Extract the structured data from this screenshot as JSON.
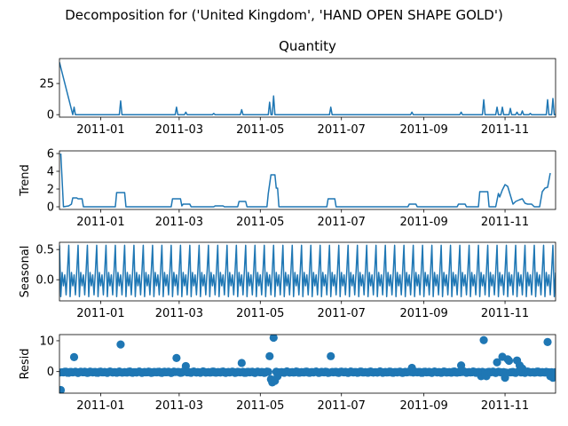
{
  "chart_data": {
    "type": "line",
    "title": "Decomposition for ('United Kingdom', 'HAND OPEN SHAPE GOLD')",
    "x_tick_labels": [
      "2011-01",
      "2011-03",
      "2011-05",
      "2011-07",
      "2011-09",
      "2011-11"
    ],
    "x_range": [
      "2010-12-01",
      "2011-12-09"
    ],
    "line_color": "#1f77b4",
    "panels": [
      {
        "id": "observed",
        "title": "Quantity",
        "ylabel": "",
        "type": "line",
        "ylim": [
          -2,
          45
        ],
        "yticks": [
          0,
          25
        ],
        "yticklabels": [
          "0",
          "25"
        ],
        "baseline": 0,
        "spikes": [
          {
            "date": "2010-12-01",
            "value": 42
          },
          {
            "date": "2010-12-12",
            "value": 6
          },
          {
            "date": "2011-01-16",
            "value": 11
          },
          {
            "date": "2011-02-27",
            "value": 6
          },
          {
            "date": "2011-03-06",
            "value": 2
          },
          {
            "date": "2011-03-27",
            "value": 1
          },
          {
            "date": "2011-04-17",
            "value": 4
          },
          {
            "date": "2011-05-08",
            "value": 10
          },
          {
            "date": "2011-05-11",
            "value": 15
          },
          {
            "date": "2011-06-23",
            "value": 6
          },
          {
            "date": "2011-08-23",
            "value": 2
          },
          {
            "date": "2011-09-29",
            "value": 2
          },
          {
            "date": "2011-10-16",
            "value": 12
          },
          {
            "date": "2011-10-26",
            "value": 6
          },
          {
            "date": "2011-10-30",
            "value": 6
          },
          {
            "date": "2011-11-05",
            "value": 5
          },
          {
            "date": "2011-11-10",
            "value": 2
          },
          {
            "date": "2011-11-14",
            "value": 3
          },
          {
            "date": "2011-11-20",
            "value": 1
          },
          {
            "date": "2011-12-03",
            "value": 12
          },
          {
            "date": "2011-12-07",
            "value": 13
          }
        ]
      },
      {
        "id": "trend",
        "title": "",
        "ylabel": "Trend",
        "type": "line",
        "ylim": [
          -0.3,
          6.3
        ],
        "yticks": [
          0,
          2,
          4,
          6
        ],
        "yticklabels": [
          "0",
          "2",
          "4",
          "6"
        ],
        "points": [
          [
            "2010-12-02",
            6.0
          ],
          [
            "2010-12-04",
            0.0
          ],
          [
            "2010-12-08",
            0.1
          ],
          [
            "2010-12-10",
            0.3
          ],
          [
            "2010-12-11",
            1.0
          ],
          [
            "2010-12-14",
            1.0
          ],
          [
            "2010-12-15",
            0.9
          ],
          [
            "2010-12-18",
            0.9
          ],
          [
            "2010-12-19",
            0.0
          ],
          [
            "2011-01-12",
            0.0
          ],
          [
            "2011-01-13",
            1.6
          ],
          [
            "2011-01-19",
            1.6
          ],
          [
            "2011-01-20",
            0.0
          ],
          [
            "2011-02-23",
            0.0
          ],
          [
            "2011-02-24",
            0.9
          ],
          [
            "2011-03-02",
            0.9
          ],
          [
            "2011-03-03",
            0.1
          ],
          [
            "2011-03-04",
            0.3
          ],
          [
            "2011-03-09",
            0.3
          ],
          [
            "2011-03-10",
            0.0
          ],
          [
            "2011-03-27",
            0.0
          ],
          [
            "2011-03-28",
            0.1
          ],
          [
            "2011-04-03",
            0.1
          ],
          [
            "2011-04-04",
            0.0
          ],
          [
            "2011-04-14",
            0.0
          ],
          [
            "2011-04-15",
            0.6
          ],
          [
            "2011-04-20",
            0.6
          ],
          [
            "2011-04-21",
            0.0
          ],
          [
            "2011-05-06",
            0.0
          ],
          [
            "2011-05-07",
            1.5
          ],
          [
            "2011-05-09",
            3.6
          ],
          [
            "2011-05-12",
            3.6
          ],
          [
            "2011-05-13",
            2.1
          ],
          [
            "2011-05-14",
            2.1
          ],
          [
            "2011-05-15",
            0.0
          ],
          [
            "2011-06-20",
            0.0
          ],
          [
            "2011-06-21",
            0.9
          ],
          [
            "2011-06-26",
            0.9
          ],
          [
            "2011-06-27",
            0.0
          ],
          [
            "2011-08-20",
            0.0
          ],
          [
            "2011-08-21",
            0.3
          ],
          [
            "2011-08-26",
            0.3
          ],
          [
            "2011-08-27",
            0.0
          ],
          [
            "2011-09-26",
            0.0
          ],
          [
            "2011-09-27",
            0.3
          ],
          [
            "2011-10-02",
            0.3
          ],
          [
            "2011-10-03",
            0.0
          ],
          [
            "2011-10-12",
            0.0
          ],
          [
            "2011-10-13",
            1.7
          ],
          [
            "2011-10-19",
            1.7
          ],
          [
            "2011-10-20",
            0.0
          ],
          [
            "2011-10-25",
            0.0
          ],
          [
            "2011-10-27",
            1.5
          ],
          [
            "2011-10-28",
            1.1
          ],
          [
            "2011-10-30",
            1.9
          ],
          [
            "2011-11-01",
            2.5
          ],
          [
            "2011-11-03",
            2.3
          ],
          [
            "2011-11-05",
            1.3
          ],
          [
            "2011-11-07",
            0.3
          ],
          [
            "2011-11-09",
            0.6
          ],
          [
            "2011-11-12",
            0.8
          ],
          [
            "2011-11-14",
            0.9
          ],
          [
            "2011-11-16",
            0.4
          ],
          [
            "2011-11-18",
            0.3
          ],
          [
            "2011-11-21",
            0.3
          ],
          [
            "2011-11-23",
            0.0
          ],
          [
            "2011-11-27",
            0.0
          ],
          [
            "2011-11-29",
            1.7
          ],
          [
            "2011-12-01",
            2.1
          ],
          [
            "2011-12-03",
            2.2
          ],
          [
            "2011-12-05",
            3.8
          ]
        ]
      },
      {
        "id": "seasonal",
        "title": "",
        "ylabel": "Seasonal",
        "type": "line",
        "ylim": [
          -0.35,
          0.62
        ],
        "yticks": [
          0.0,
          0.5
        ],
        "yticklabels": [
          "0.0",
          "0.5"
        ],
        "period_days": 7,
        "start_date": "2010-12-01",
        "end_date": "2011-12-09",
        "weekly_pattern": [
          0.57,
          -0.28,
          0.12,
          -0.1,
          0.08,
          -0.25,
          0.13
        ]
      },
      {
        "id": "resid",
        "title": "",
        "ylabel": "Resid",
        "type": "scatter",
        "ylim": [
          -7,
          12
        ],
        "yticks": [
          0,
          10
        ],
        "yticklabels": [
          "0",
          "10"
        ],
        "outliers": [
          [
            "2010-12-02",
            -6.0
          ],
          [
            "2010-12-12",
            4.7
          ],
          [
            "2011-01-16",
            8.8
          ],
          [
            "2011-02-27",
            4.4
          ],
          [
            "2011-03-06",
            1.8
          ],
          [
            "2011-04-17",
            2.8
          ],
          [
            "2011-05-08",
            5.0
          ],
          [
            "2011-05-09",
            -2.5
          ],
          [
            "2011-05-10",
            -3.5
          ],
          [
            "2011-05-11",
            11.0
          ],
          [
            "2011-05-12",
            -3.0
          ],
          [
            "2011-05-14",
            -1.5
          ],
          [
            "2011-06-23",
            5.0
          ],
          [
            "2011-08-23",
            1.2
          ],
          [
            "2011-09-29",
            2.0
          ],
          [
            "2011-10-16",
            10.2
          ],
          [
            "2011-10-14",
            -1.5
          ],
          [
            "2011-10-18",
            -1.5
          ],
          [
            "2011-10-26",
            3.0
          ],
          [
            "2011-10-30",
            4.8
          ],
          [
            "2011-11-01",
            -2.0
          ],
          [
            "2011-11-03",
            4.0
          ],
          [
            "2011-11-04",
            3.5
          ],
          [
            "2011-11-10",
            3.6
          ],
          [
            "2011-11-12",
            2.0
          ],
          [
            "2011-11-14",
            1.0
          ],
          [
            "2011-12-03",
            9.6
          ],
          [
            "2011-12-05",
            -1.5
          ],
          [
            "2011-12-07",
            -2.0
          ]
        ]
      }
    ]
  }
}
